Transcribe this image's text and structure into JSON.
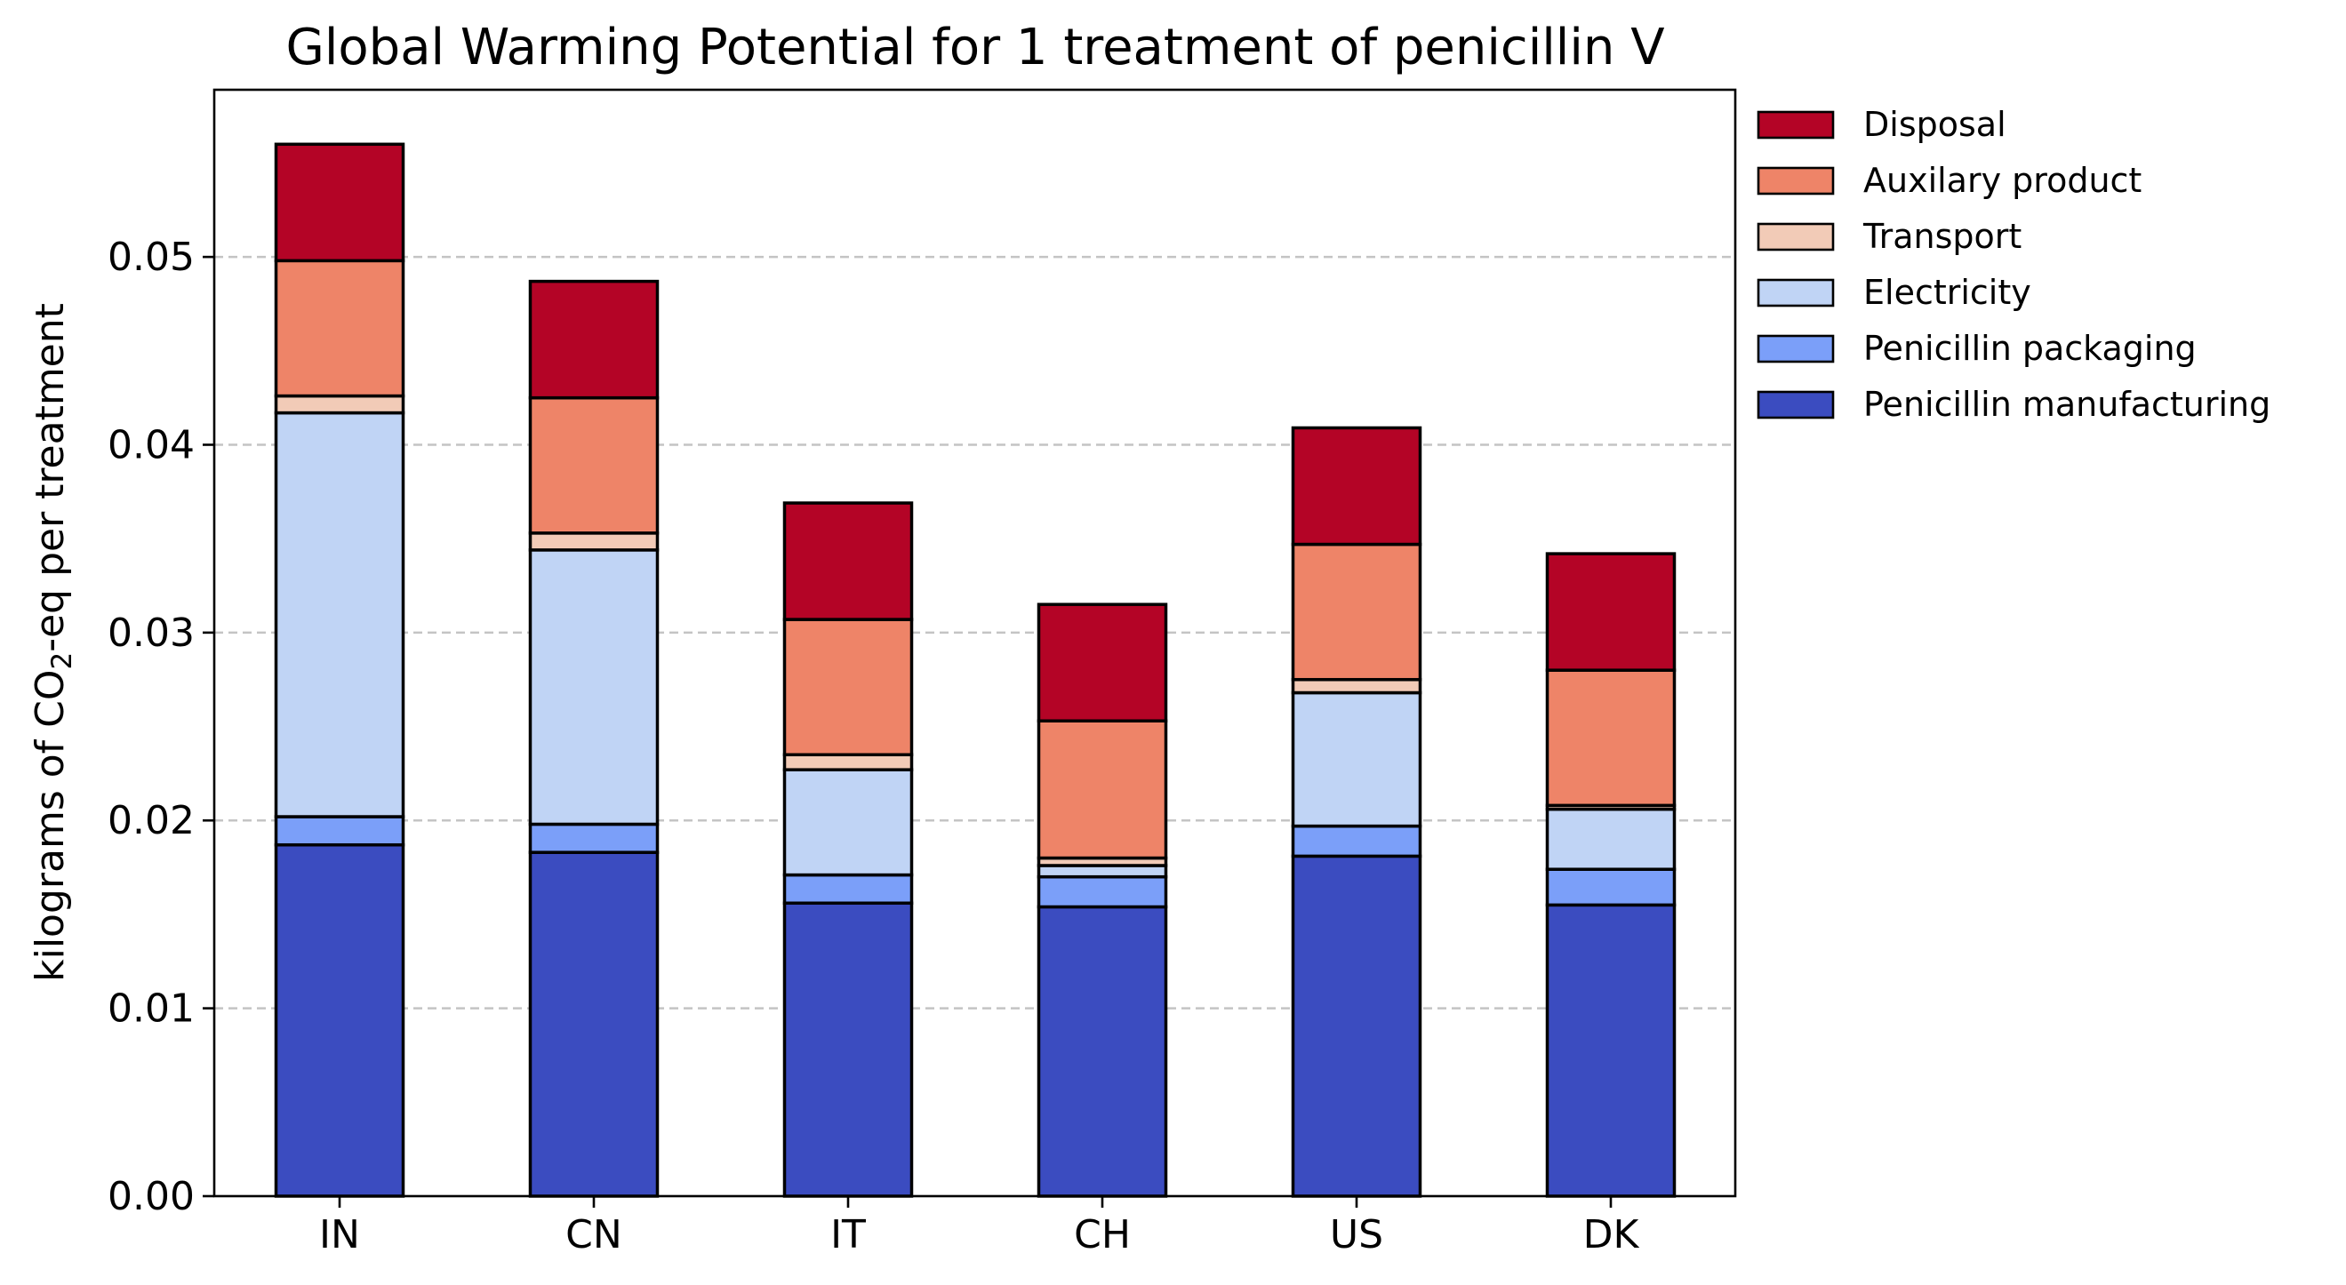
{
  "chart_data": {
    "type": "bar",
    "stacked": true,
    "title": "Global Warming Potential for 1 treatment of penicillin V",
    "ylabel_parts": [
      "kilograms of CO",
      "2",
      "-eq per treatment"
    ],
    "xlabel": "",
    "ylim": [
      0,
      0.0589
    ],
    "yticks": [
      "0.00",
      "0.01",
      "0.02",
      "0.03",
      "0.04",
      "0.05"
    ],
    "grid": "y-dashed",
    "legend_position": "outside-right",
    "categories": [
      "IN",
      "CN",
      "IT",
      "CH",
      "US",
      "DK"
    ],
    "series": [
      {
        "name": "Penicillin manufacturing",
        "color": "#3b4cc0",
        "values": [
          0.0187,
          0.0183,
          0.0156,
          0.0154,
          0.0181,
          0.0155
        ]
      },
      {
        "name": "Penicillin packaging",
        "color": "#7b9ff9",
        "values": [
          0.0015,
          0.0015,
          0.0015,
          0.0016,
          0.0016,
          0.0019
        ]
      },
      {
        "name": "Electricity",
        "color": "#c0d4f5",
        "values": [
          0.0215,
          0.0146,
          0.0056,
          0.0006,
          0.0071,
          0.0032
        ]
      },
      {
        "name": "Transport",
        "color": "#f2cbb7",
        "values": [
          0.0009,
          0.0009,
          0.0008,
          0.0004,
          0.0007,
          0.0002
        ]
      },
      {
        "name": "Auxilary product",
        "color": "#ee8468",
        "values": [
          0.0072,
          0.0072,
          0.0072,
          0.0073,
          0.0072,
          0.0072
        ]
      },
      {
        "name": "Disposal",
        "color": "#b40426",
        "values": [
          0.0062,
          0.0062,
          0.0062,
          0.0062,
          0.0062,
          0.0062
        ]
      }
    ]
  }
}
